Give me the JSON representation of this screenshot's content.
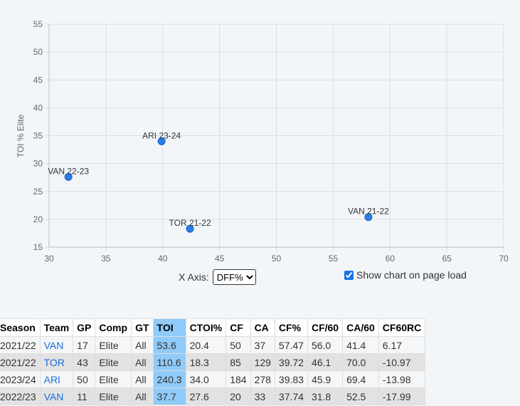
{
  "chart_data": {
    "type": "scatter",
    "title": "",
    "xlabel": "",
    "ylabel": "TOI % Elite",
    "xlim": [
      30,
      70
    ],
    "ylim": [
      15,
      55
    ],
    "xticks": [
      30,
      35,
      40,
      45,
      50,
      55,
      60,
      65,
      70
    ],
    "yticks": [
      15,
      20,
      25,
      30,
      35,
      40,
      45,
      50,
      55
    ],
    "points": [
      {
        "label": "VAN 21-22",
        "x": 58.1,
        "y": 20.4
      },
      {
        "label": "TOR 21-22",
        "x": 42.4,
        "y": 18.3
      },
      {
        "label": "ARI 23-24",
        "x": 39.9,
        "y": 34.0
      },
      {
        "label": "VAN 22-23",
        "x": 31.7,
        "y": 27.6
      }
    ],
    "point_color": "#2b7de9"
  },
  "controls": {
    "x_axis_label": "X Axis:",
    "x_axis_selected": "DFF%",
    "show_chart_label": "Show chart on page load",
    "show_chart_checked": true
  },
  "table": {
    "headers": [
      "Season",
      "Team",
      "GP",
      "Comp",
      "GT",
      "TOI",
      "CTOI%",
      "CF",
      "CA",
      "CF%",
      "CF/60",
      "CA/60",
      "CF60RC"
    ],
    "rows": [
      [
        "2021/22",
        "VAN",
        "17",
        "Elite",
        "All",
        "53.6",
        "20.4",
        "50",
        "37",
        "57.47",
        "56.0",
        "41.4",
        "6.17"
      ],
      [
        "2021/22",
        "TOR",
        "43",
        "Elite",
        "All",
        "110.6",
        "18.3",
        "85",
        "129",
        "39.72",
        "46.1",
        "70.0",
        "-10.97"
      ],
      [
        "2023/24",
        "ARI",
        "50",
        "Elite",
        "All",
        "240.3",
        "34.0",
        "184",
        "278",
        "39.83",
        "45.9",
        "69.4",
        "-13.98"
      ],
      [
        "2022/23",
        "VAN",
        "11",
        "Elite",
        "All",
        "37.7",
        "27.6",
        "20",
        "33",
        "37.74",
        "31.8",
        "52.5",
        "-17.99"
      ]
    ]
  }
}
